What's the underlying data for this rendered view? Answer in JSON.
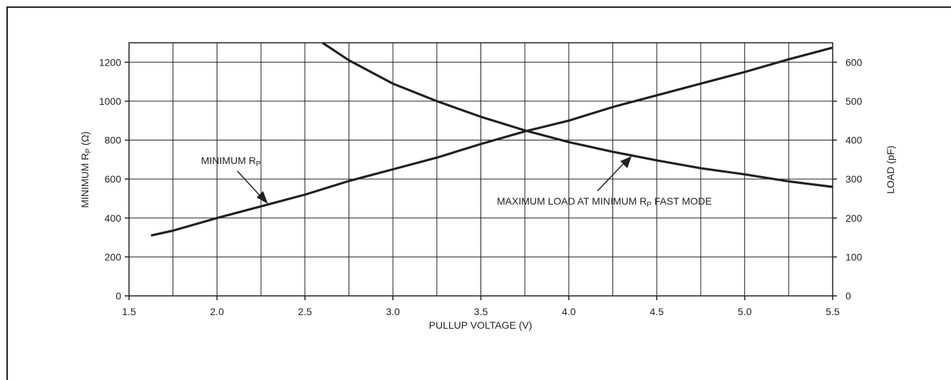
{
  "chart_data": {
    "type": "line",
    "xlabel": "PULLUP VOLTAGE (V)",
    "ylabel_left": "MINIMUM R",
    "ylabel_left_sub": "P",
    "ylabel_left_unit": " (Ω)",
    "ylabel_right": "LOAD (pF)",
    "xlim": [
      1.5,
      5.5
    ],
    "ylim_left": [
      0,
      1300
    ],
    "ylim_right": [
      0,
      650
    ],
    "grid": true,
    "x_ticks": [
      1.5,
      2.0,
      2.5,
      3.0,
      3.5,
      4.0,
      4.5,
      5.0,
      5.5
    ],
    "x_tick_labels": [
      "1.5",
      "2.0",
      "2.5",
      "3.0",
      "3.5",
      "4.0",
      "4.5",
      "5.0",
      "5.5"
    ],
    "x_minor_grid_step": 0.25,
    "y_left_ticks": [
      0,
      200,
      400,
      600,
      800,
      1000,
      1200
    ],
    "y_left_tick_labels": [
      "0",
      "200",
      "400",
      "600",
      "800",
      "1000",
      "1200"
    ],
    "y_right_ticks": [
      0,
      100,
      200,
      300,
      400,
      500,
      600
    ],
    "y_right_tick_labels": [
      "0",
      "100",
      "200",
      "300",
      "400",
      "500",
      "600"
    ],
    "series": [
      {
        "name": "MINIMUM R",
        "name_sub": "P",
        "axis": "left",
        "x": [
          1.625,
          1.75,
          2.0,
          2.25,
          2.5,
          2.75,
          3.0,
          3.25,
          3.5,
          3.75,
          4.0,
          4.25,
          4.5,
          4.75,
          5.0,
          5.25,
          5.5
        ],
        "y": [
          310,
          335,
          400,
          460,
          520,
          590,
          650,
          710,
          780,
          845,
          900,
          970,
          1030,
          1090,
          1150,
          1215,
          1275
        ]
      },
      {
        "name": "MAXIMUM LOAD AT MINIMUM R",
        "name_sub": "P",
        "name_suffix": " FAST MODE",
        "axis": "right",
        "x": [
          2.6,
          2.75,
          3.0,
          3.25,
          3.5,
          3.75,
          4.0,
          4.25,
          4.5,
          4.75,
          5.0,
          5.25,
          5.5
        ],
        "y": [
          650,
          605,
          545,
          500,
          460,
          425,
          395,
          370,
          348,
          328,
          312,
          294,
          280
        ]
      }
    ]
  }
}
